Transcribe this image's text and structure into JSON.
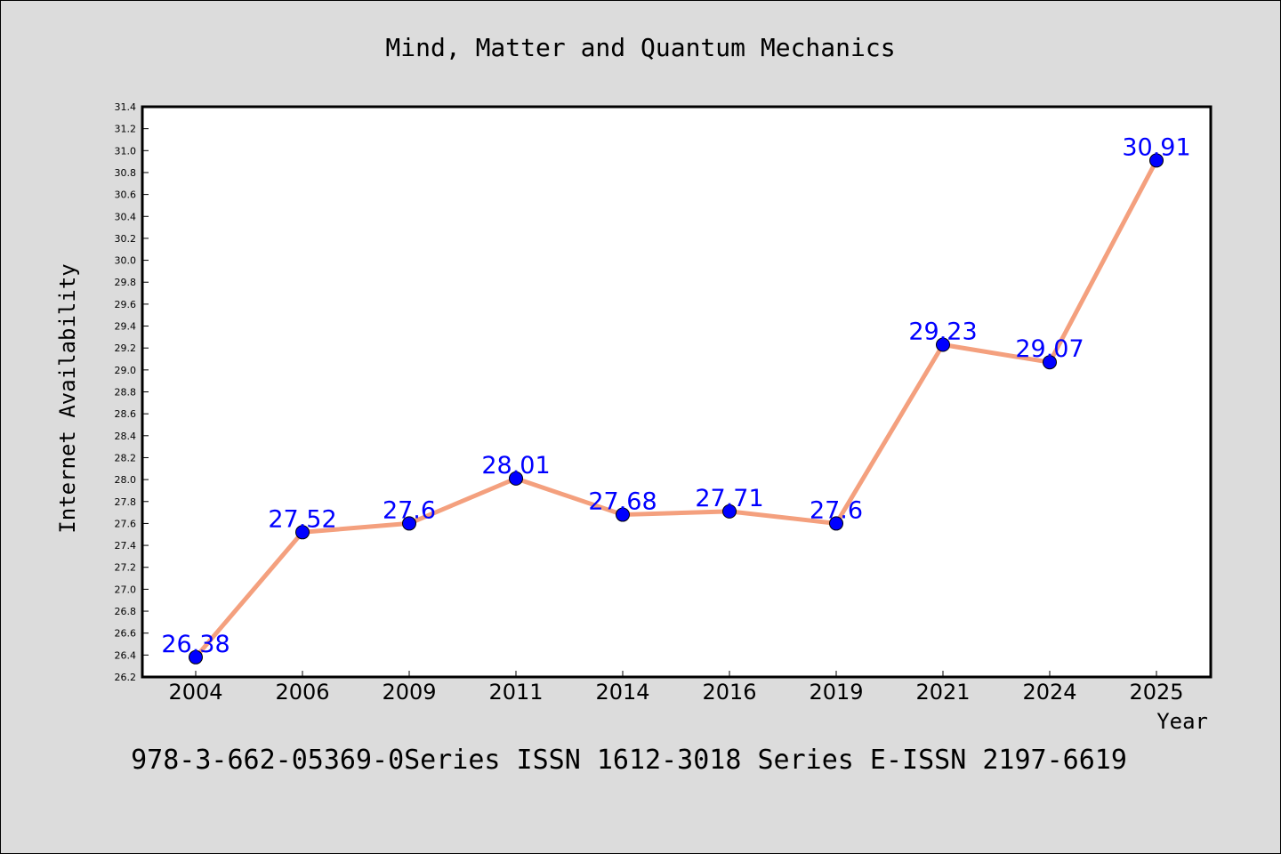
{
  "chart_data": {
    "type": "line",
    "title": "Mind, Matter and Quantum Mechanics",
    "xlabel": "Year",
    "ylabel": "Internet Availability",
    "categories": [
      "2004",
      "2006",
      "2009",
      "2011",
      "2014",
      "2016",
      "2019",
      "2021",
      "2024",
      "2025"
    ],
    "series": [
      {
        "values": [
          26.38,
          27.52,
          27.6,
          28.01,
          27.68,
          27.71,
          27.6,
          29.23,
          29.07,
          30.91
        ],
        "labels": [
          "26.38",
          "27.52",
          "27.6",
          "28.01",
          "27.68",
          "27.71",
          "27.6",
          "29.23",
          "29.07",
          "30.91"
        ]
      }
    ],
    "ylim": [
      26.2,
      31.4
    ],
    "yticks": [
      "26.2",
      "26.4",
      "26.6",
      "26.8",
      "27.0",
      "27.2",
      "27.4",
      "27.6",
      "27.8",
      "28.0",
      "28.2",
      "28.4",
      "28.6",
      "28.8",
      "29.0",
      "29.2",
      "29.4",
      "29.6",
      "29.8",
      "30.0",
      "30.2",
      "30.4",
      "30.6",
      "30.8",
      "31.0",
      "31.2",
      "31.4"
    ],
    "grid": false,
    "colors": {
      "line": "#f4a07e",
      "marker": "#0000ff",
      "data_label": "#0000ff",
      "plot_background": "#ffffff",
      "figure_background": "#dcdcdc"
    }
  },
  "footer": "978-3-662-05369-0Series ISSN 1612-3018 Series E-ISSN 2197-6619"
}
